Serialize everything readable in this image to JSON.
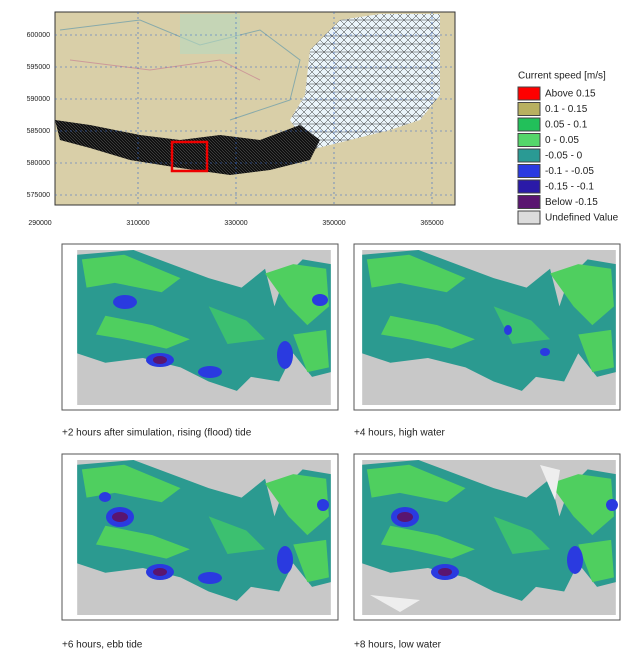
{
  "top_map": {
    "y_labels": [
      "600000",
      "595000",
      "590000",
      "585000",
      "580000",
      "575000"
    ],
    "x_labels": [
      "290000",
      "310000",
      "330000",
      "350000",
      "365000"
    ]
  },
  "legend": {
    "title": "Current speed [m/s]",
    "entries": [
      {
        "label": "Above  0.15",
        "color": "#ff0000"
      },
      {
        "label": "0.1 -  0.15",
        "color": "#b8b060"
      },
      {
        "label": "0.05 -  0.1",
        "color": "#22c05a"
      },
      {
        "label": "0 -  0.05",
        "color": "#55d66a"
      },
      {
        "label": "-0.05 -  0",
        "color": "#2a9a94"
      },
      {
        "label": "-0.1 -  -0.05",
        "color": "#2a3ae0"
      },
      {
        "label": "-0.15 -  -0.1",
        "color": "#2a1aa8"
      },
      {
        "label": "Below -0.15",
        "color": "#5a1570"
      },
      {
        "label": "Undefined Value",
        "color": "#dcdcdc"
      }
    ]
  },
  "panels": [
    {
      "caption": "+2 hours after simulation, rising (flood) tide"
    },
    {
      "caption": "+4 hours, high water"
    },
    {
      "caption": "+6 hours, ebb tide"
    },
    {
      "caption": "+8 hours, low water"
    }
  ]
}
